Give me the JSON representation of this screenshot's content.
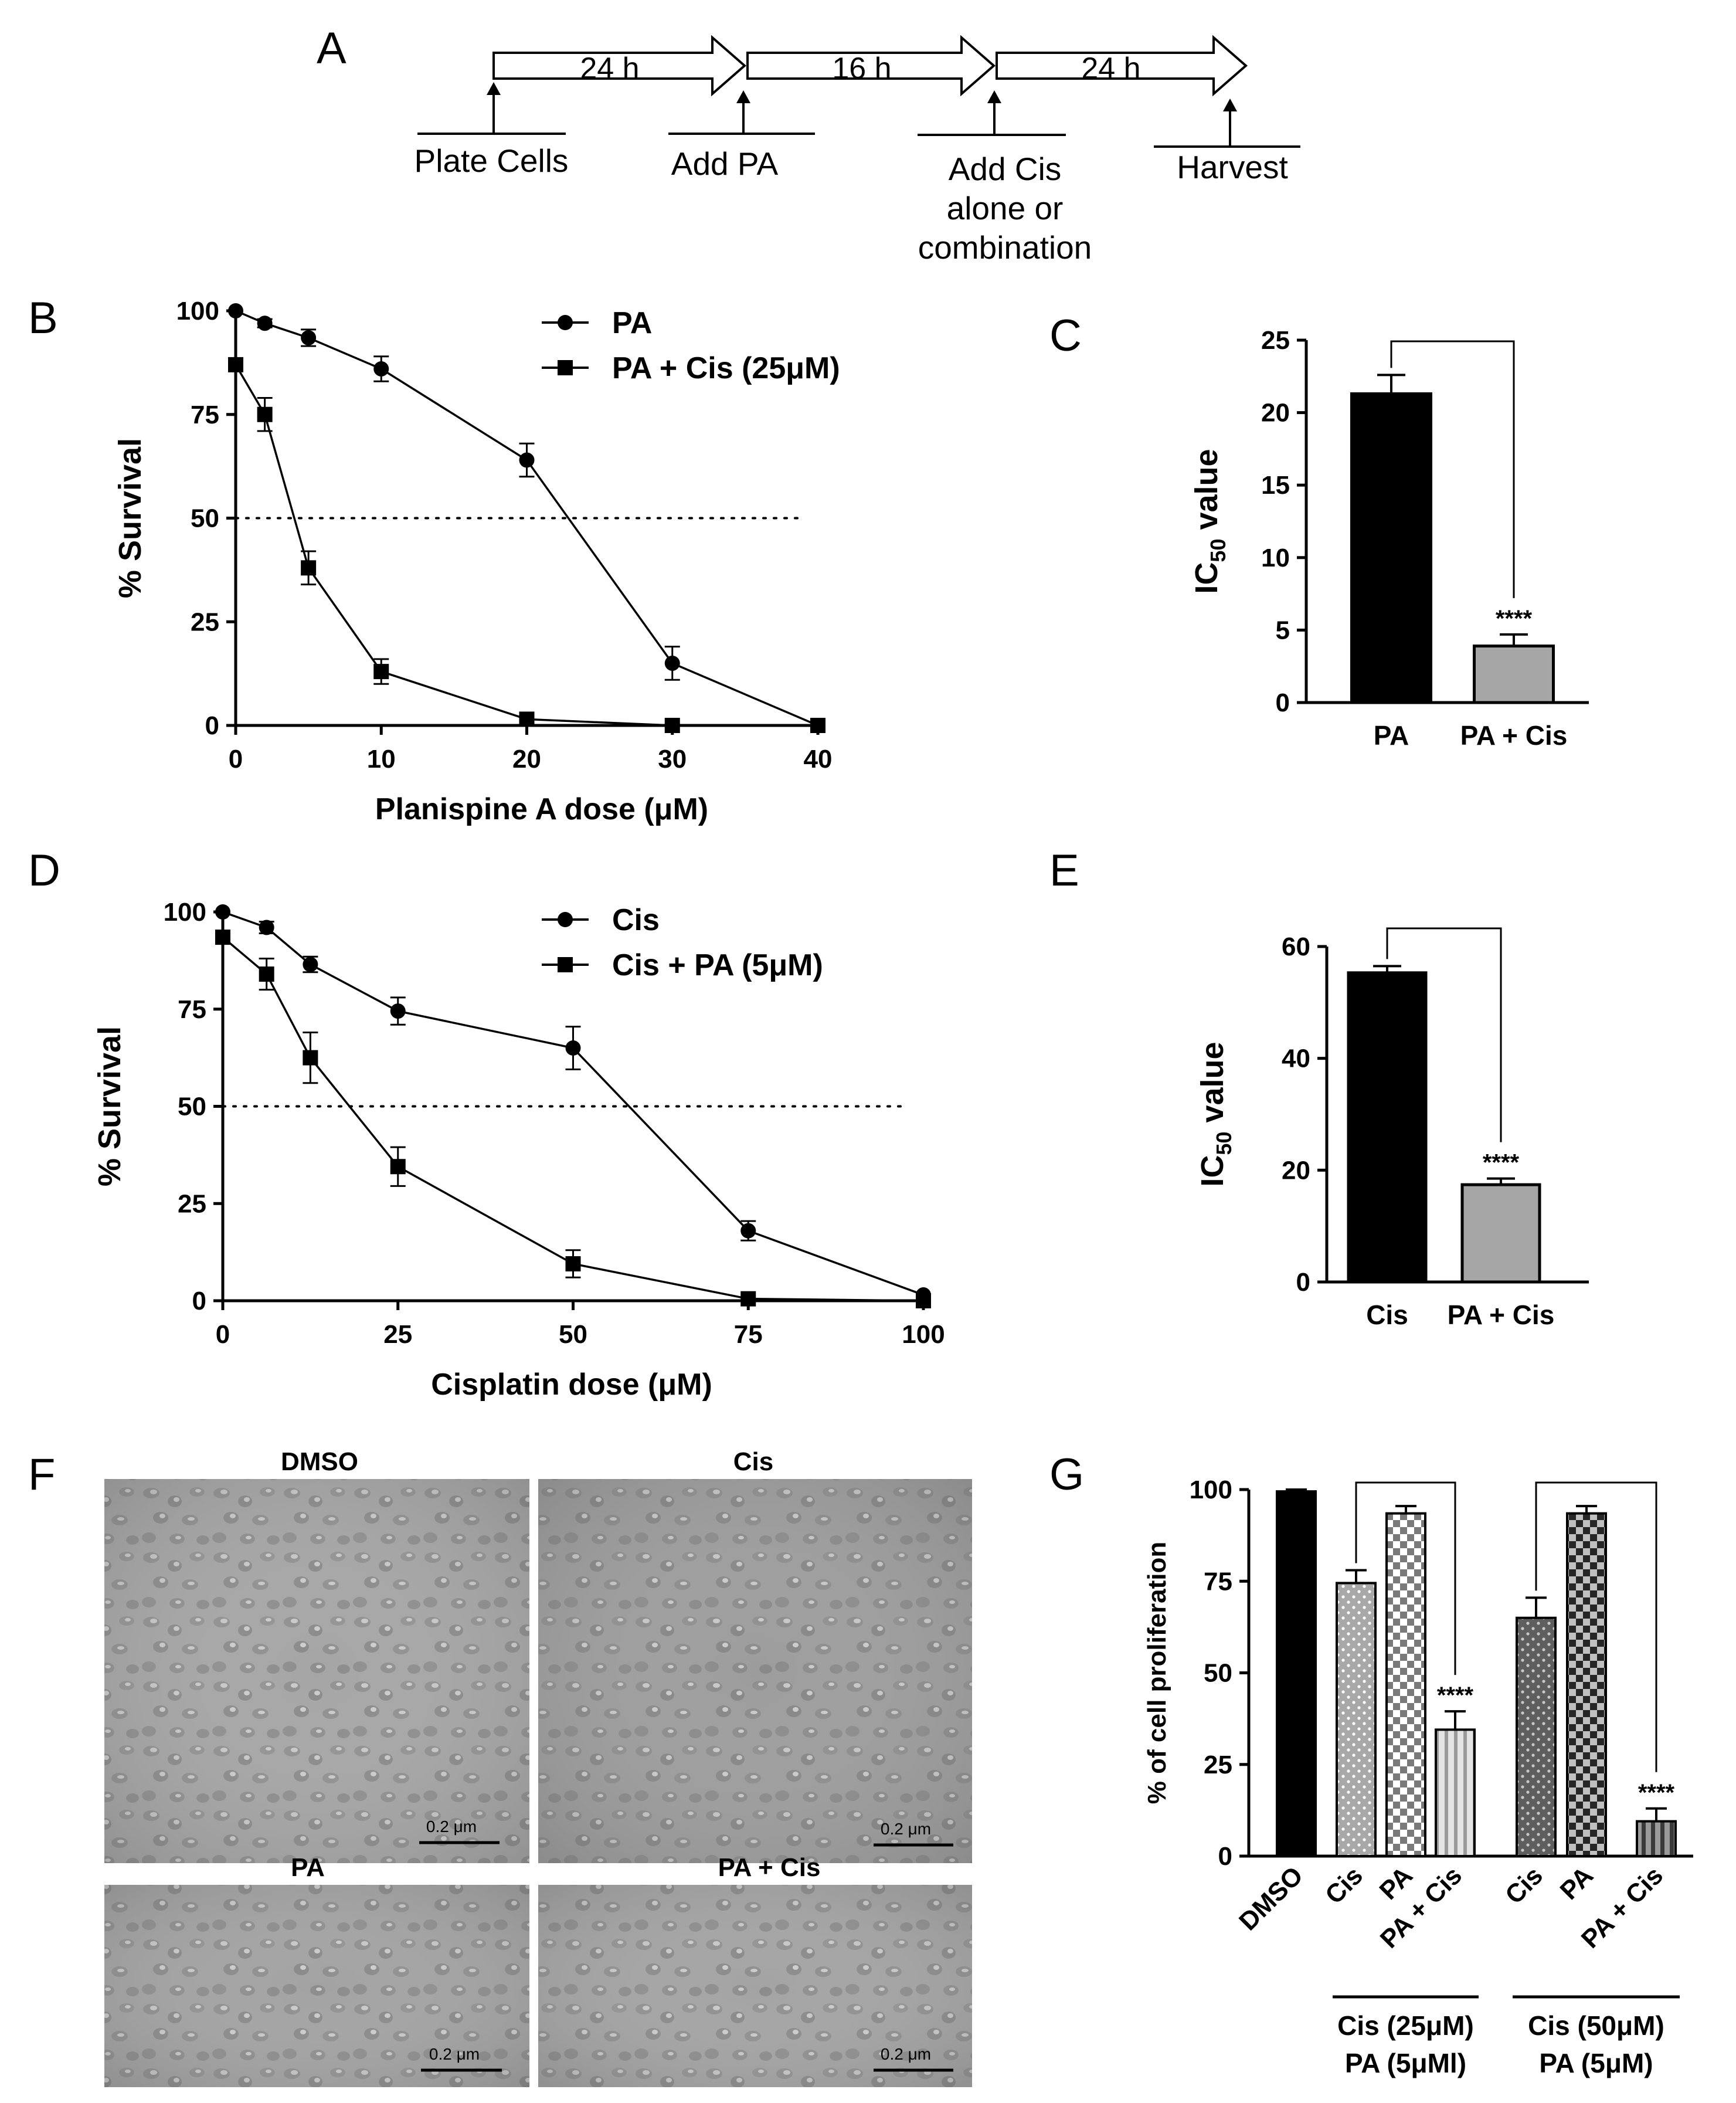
{
  "panel_letters": [
    "A",
    "B",
    "C",
    "D",
    "E",
    "F",
    "G"
  ],
  "timeline": {
    "durations": [
      "24 h",
      "16 h",
      "24 h"
    ],
    "steps": [
      {
        "lines": [
          "Plate Cells"
        ]
      },
      {
        "lines": [
          "Add PA"
        ]
      },
      {
        "lines": [
          "Add Cis",
          "alone or",
          "combination"
        ]
      },
      {
        "lines": [
          "Harvest"
        ]
      }
    ]
  },
  "micrographs": [
    {
      "label": "DMSO",
      "scale_bar": "0.2 μm",
      "tone": "#a5a5a5"
    },
    {
      "label": "Cis",
      "scale_bar": "0.2 μm",
      "tone": "#9c9c9c"
    },
    {
      "label": "PA",
      "scale_bar": "0.2 μm",
      "tone": "#a2a2a2"
    },
    {
      "label": "PA + Cis",
      "scale_bar": "0.2 μm",
      "tone": "#a3a3a3"
    }
  ],
  "chart_data": [
    {
      "panel": "B",
      "type": "line",
      "xlabel": "Planispine A dose (μM)",
      "ylabel": "% Survival",
      "xlim": [
        0,
        40
      ],
      "ylim": [
        0,
        100
      ],
      "xticks": [
        0,
        10,
        20,
        30,
        40
      ],
      "yticks": [
        0,
        25,
        50,
        75,
        100
      ],
      "reference_line": 50,
      "legend_position": "top",
      "series": [
        {
          "name": "PA",
          "marker": "circle",
          "points": [
            {
              "x": 0,
              "y": 100,
              "err": 0
            },
            {
              "x": 2,
              "y": 97,
              "err": 1
            },
            {
              "x": 5,
              "y": 93.5,
              "err": 2
            },
            {
              "x": 10,
              "y": 86,
              "err": 3
            },
            {
              "x": 20,
              "y": 64,
              "err": 4
            },
            {
              "x": 30,
              "y": 15,
              "err": 4
            },
            {
              "x": 40,
              "y": 0,
              "err": 0
            }
          ]
        },
        {
          "name": "PA + Cis (25μM)",
          "marker": "square",
          "points": [
            {
              "x": 0,
              "y": 87,
              "err": 0
            },
            {
              "x": 2,
              "y": 75,
              "err": 4
            },
            {
              "x": 5,
              "y": 38,
              "err": 4
            },
            {
              "x": 10,
              "y": 13,
              "err": 3
            },
            {
              "x": 20,
              "y": 1.5,
              "err": 0
            },
            {
              "x": 30,
              "y": 0,
              "err": 0
            },
            {
              "x": 40,
              "y": 0,
              "err": 0
            }
          ]
        }
      ]
    },
    {
      "panel": "C",
      "type": "bar",
      "ylabel_main": "IC",
      "ylabel_sub": "50",
      "ylabel_rest": " value",
      "categories": [
        "PA",
        "PA + Cis"
      ],
      "values": [
        21.3,
        3.9
      ],
      "errors": [
        1.3,
        0.8
      ],
      "ylim": [
        0,
        25
      ],
      "yticks": [
        0,
        5,
        10,
        15,
        20,
        25
      ],
      "fills": [
        "#000000",
        "#a6a6a6"
      ],
      "significance": "****"
    },
    {
      "panel": "D",
      "type": "line",
      "xlabel": "Cisplatin dose (μM)",
      "ylabel": "% Survival",
      "xlim": [
        0,
        100
      ],
      "ylim": [
        0,
        100
      ],
      "xticks": [
        0,
        25,
        50,
        75,
        100
      ],
      "yticks": [
        0,
        25,
        50,
        75,
        100
      ],
      "reference_line": 50,
      "legend_position": "top",
      "series": [
        {
          "name": "Cis",
          "marker": "circle",
          "points": [
            {
              "x": 0,
              "y": 100,
              "err": 0
            },
            {
              "x": 6.25,
              "y": 96,
              "err": 1.5
            },
            {
              "x": 12.5,
              "y": 86.5,
              "err": 2
            },
            {
              "x": 25,
              "y": 74.5,
              "err": 3.5
            },
            {
              "x": 50,
              "y": 65,
              "err": 5.5
            },
            {
              "x": 75,
              "y": 18,
              "err": 2.5
            },
            {
              "x": 100,
              "y": 1.5,
              "err": 0
            }
          ]
        },
        {
          "name": "Cis + PA (5μM)",
          "marker": "square",
          "points": [
            {
              "x": 0,
              "y": 93.5,
              "err": 1
            },
            {
              "x": 6.25,
              "y": 84,
              "err": 4
            },
            {
              "x": 12.5,
              "y": 62.5,
              "err": 6.5
            },
            {
              "x": 25,
              "y": 34.5,
              "err": 5
            },
            {
              "x": 50,
              "y": 9.5,
              "err": 3.5
            },
            {
              "x": 75,
              "y": 0.5,
              "err": 0
            },
            {
              "x": 100,
              "y": 0,
              "err": 0
            }
          ]
        }
      ]
    },
    {
      "panel": "E",
      "type": "bar",
      "ylabel_main": "IC",
      "ylabel_sub": "50",
      "ylabel_rest": " value",
      "categories": [
        "Cis",
        "PA + Cis"
      ],
      "values": [
        55.3,
        17.4
      ],
      "errors": [
        1.2,
        1.1
      ],
      "ylim": [
        0,
        60
      ],
      "yticks": [
        0,
        20,
        40,
        60
      ],
      "fills": [
        "#000000",
        "#a6a6a6"
      ],
      "significance": "****"
    },
    {
      "panel": "G",
      "type": "bar",
      "ylabel": "% of cell proliferation",
      "categories": [
        "DMSO",
        "Cis",
        "PA",
        "PA + Cis",
        "Cis",
        "PA",
        "PA + Cis"
      ],
      "values": [
        99.5,
        74.5,
        93.5,
        34.5,
        65,
        93.5,
        9.5
      ],
      "errors": [
        0.5,
        3.5,
        2,
        5,
        5.5,
        2,
        3.5
      ],
      "patterns": [
        "solid",
        "dots",
        "checker",
        "vstripes",
        "darkdots",
        "darkchecker",
        "darkvstripes"
      ],
      "ylim": [
        0,
        100
      ],
      "yticks": [
        0,
        25,
        50,
        75,
        100
      ],
      "significance": [
        "",
        "",
        "",
        "****",
        "",
        "",
        "****"
      ],
      "groups": [
        {
          "lines": [
            "Cis (25μM)",
            "PA (5μMl)"
          ],
          "from": 1,
          "to": 3
        },
        {
          "lines": [
            "Cis (50μM)",
            "PA (5μM)"
          ],
          "from": 4,
          "to": 6
        }
      ]
    }
  ]
}
